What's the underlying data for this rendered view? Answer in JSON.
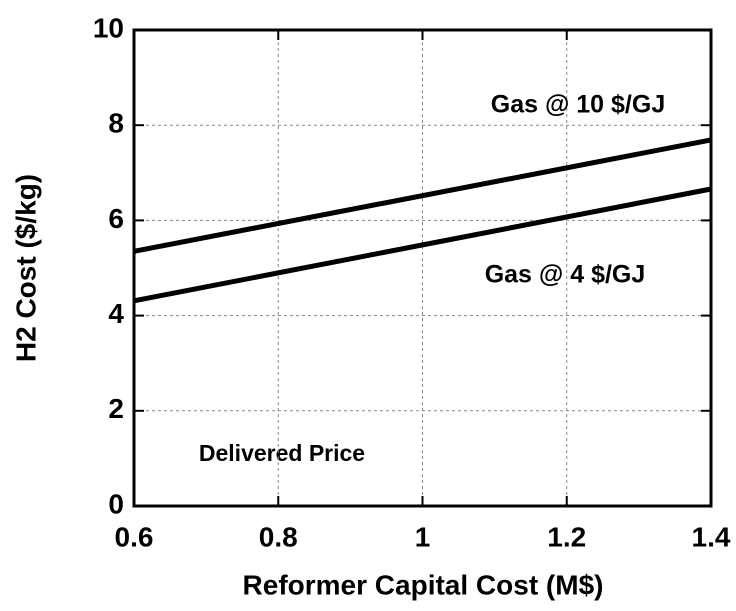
{
  "chart_data": {
    "type": "line",
    "xlabel": "Reformer Capital Cost (M$)",
    "ylabel": "H2 Cost ($/kg)",
    "annotation": "Delivered Price",
    "x": [
      0.6,
      1.4
    ],
    "series": [
      {
        "name": "Gas @ 10 $/GJ",
        "color": "#000000",
        "values": [
          5.35,
          7.69
        ]
      },
      {
        "name": "Gas @ 4 $/GJ",
        "color": "#000000",
        "values": [
          4.31,
          6.66
        ]
      }
    ],
    "xlim": [
      0.6,
      1.4
    ],
    "xticks": [
      0.6,
      0.8,
      1,
      1.2,
      1.4
    ],
    "ylim": [
      0,
      10
    ],
    "yticks": [
      0,
      2,
      4,
      6,
      8,
      10
    ],
    "grid": true
  }
}
